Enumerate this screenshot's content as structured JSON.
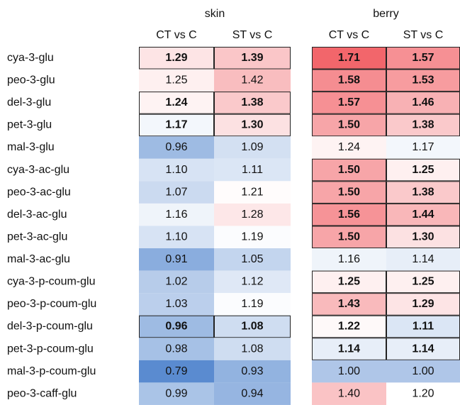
{
  "table": {
    "groups": [
      "skin",
      "berry"
    ],
    "columns": [
      "CT vs C",
      "ST vs C",
      "CT vs C",
      "ST vs C"
    ],
    "rows": [
      {
        "label": "cya-3-glu",
        "values": [
          "1.29",
          "1.39",
          "1.71",
          "1.57"
        ],
        "bold": [
          true,
          true,
          true,
          true
        ]
      },
      {
        "label": "peo-3-glu",
        "values": [
          "1.25",
          "1.42",
          "1.58",
          "1.53"
        ],
        "bold": [
          false,
          false,
          true,
          true
        ]
      },
      {
        "label": "del-3-glu",
        "values": [
          "1.24",
          "1.38",
          "1.57",
          "1.46"
        ],
        "bold": [
          true,
          true,
          true,
          true
        ]
      },
      {
        "label": "pet-3-glu",
        "values": [
          "1.17",
          "1.30",
          "1.50",
          "1.38"
        ],
        "bold": [
          true,
          true,
          true,
          true
        ]
      },
      {
        "label": "mal-3-glu",
        "values": [
          "0.96",
          "1.09",
          "1.24",
          "1.17"
        ],
        "bold": [
          false,
          false,
          false,
          false
        ]
      },
      {
        "label": "cya-3-ac-glu",
        "values": [
          "1.10",
          "1.11",
          "1.50",
          "1.25"
        ],
        "bold": [
          false,
          false,
          true,
          true
        ]
      },
      {
        "label": "peo-3-ac-glu",
        "values": [
          "1.07",
          "1.21",
          "1.50",
          "1.38"
        ],
        "bold": [
          false,
          false,
          true,
          true
        ]
      },
      {
        "label": "del-3-ac-glu",
        "values": [
          "1.16",
          "1.28",
          "1.56",
          "1.44"
        ],
        "bold": [
          false,
          false,
          true,
          true
        ]
      },
      {
        "label": "pet-3-ac-glu",
        "values": [
          "1.10",
          "1.19",
          "1.50",
          "1.30"
        ],
        "bold": [
          false,
          false,
          true,
          true
        ]
      },
      {
        "label": "mal-3-ac-glu",
        "values": [
          "0.91",
          "1.05",
          "1.16",
          "1.14"
        ],
        "bold": [
          false,
          false,
          false,
          false
        ]
      },
      {
        "label": "cya-3-p-coum-glu",
        "values": [
          "1.02",
          "1.12",
          "1.25",
          "1.25"
        ],
        "bold": [
          false,
          false,
          true,
          true
        ]
      },
      {
        "label": "peo-3-p-coum-glu",
        "values": [
          "1.03",
          "1.19",
          "1.43",
          "1.29"
        ],
        "bold": [
          false,
          false,
          true,
          true
        ]
      },
      {
        "label": "del-3-p-coum-glu",
        "values": [
          "0.96",
          "1.08",
          "1.22",
          "1.11"
        ],
        "bold": [
          true,
          true,
          true,
          true
        ]
      },
      {
        "label": "pet-3-p-coum-glu",
        "values": [
          "0.98",
          "1.08",
          "1.14",
          "1.14"
        ],
        "bold": [
          false,
          false,
          true,
          true
        ]
      },
      {
        "label": "mal-3-p-coum-glu",
        "values": [
          "0.79",
          "0.93",
          "1.00",
          "1.00"
        ],
        "bold": [
          false,
          false,
          false,
          false
        ]
      },
      {
        "label": "peo-3-caff-glu",
        "values": [
          "0.99",
          "0.94",
          "1.40",
          "1.20"
        ],
        "bold": [
          false,
          false,
          false,
          false
        ]
      }
    ],
    "color_scale": {
      "colors": [
        "#5a8bd0",
        "#ffffff",
        "#f2666b"
      ],
      "stops": [
        0.79,
        1.2,
        1.71
      ]
    }
  }
}
